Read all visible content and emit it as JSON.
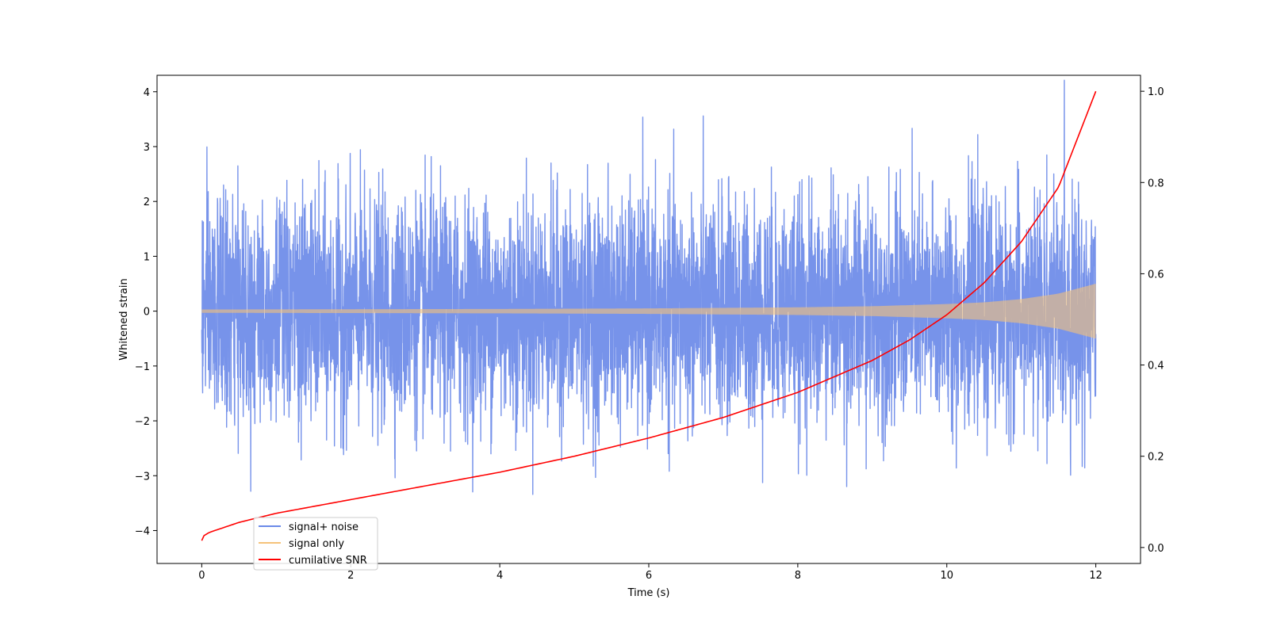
{
  "chart_data": {
    "type": "line",
    "title": "",
    "xlabel": "Time (s)",
    "ylabel": "Whitened strain",
    "y2label": "",
    "xlim": [
      -0.6,
      12.6
    ],
    "ylim": [
      -4.6,
      4.3
    ],
    "y2lim": [
      -0.035,
      1.035
    ],
    "x_ticks": [
      0,
      2,
      4,
      6,
      8,
      10,
      12
    ],
    "y_ticks": [
      -4,
      -3,
      -2,
      -1,
      0,
      1,
      2,
      3,
      4
    ],
    "y2_ticks": [
      0.0,
      0.2,
      0.4,
      0.6,
      0.8,
      1.0
    ],
    "x_tick_labels": [
      "0",
      "2",
      "4",
      "6",
      "8",
      "10",
      "12"
    ],
    "y_tick_labels": [
      "−4",
      "−3",
      "−2",
      "−1",
      "0",
      "1",
      "2",
      "3",
      "4"
    ],
    "y2_tick_labels": [
      "0.0",
      "0.2",
      "0.4",
      "0.6",
      "0.8",
      "1.0"
    ],
    "grid": false,
    "legend_position": "lower-left",
    "series": [
      {
        "name": "signal+ noise",
        "axis": "left",
        "color": "#6b8ae8",
        "description": "white noise with unit variance plus chirp signal",
        "noise_std": 1.0,
        "x_range": [
          0,
          12
        ]
      },
      {
        "name": "signal only",
        "axis": "left",
        "color": "#f5c27a",
        "description": "chirp whose amplitude grows from 0.03 to 0.5",
        "envelope": {
          "x": [
            0,
            2,
            4,
            6,
            8,
            9,
            10,
            10.5,
            11,
            11.5,
            12
          ],
          "amplitude": [
            0.03,
            0.035,
            0.04,
            0.05,
            0.07,
            0.09,
            0.13,
            0.16,
            0.22,
            0.32,
            0.5
          ]
        }
      },
      {
        "name": "cumilative SNR",
        "axis": "right",
        "color": "#ff0000",
        "x": [
          0,
          0.02,
          0.1,
          0.5,
          1,
          2,
          3,
          4,
          5,
          6,
          7,
          8,
          9,
          9.5,
          10,
          10.5,
          11,
          11.5,
          12
        ],
        "values": [
          0.015,
          0.025,
          0.033,
          0.055,
          0.075,
          0.105,
          0.135,
          0.165,
          0.2,
          0.24,
          0.285,
          0.34,
          0.41,
          0.455,
          0.51,
          0.58,
          0.67,
          0.79,
          1.0
        ]
      }
    ]
  }
}
